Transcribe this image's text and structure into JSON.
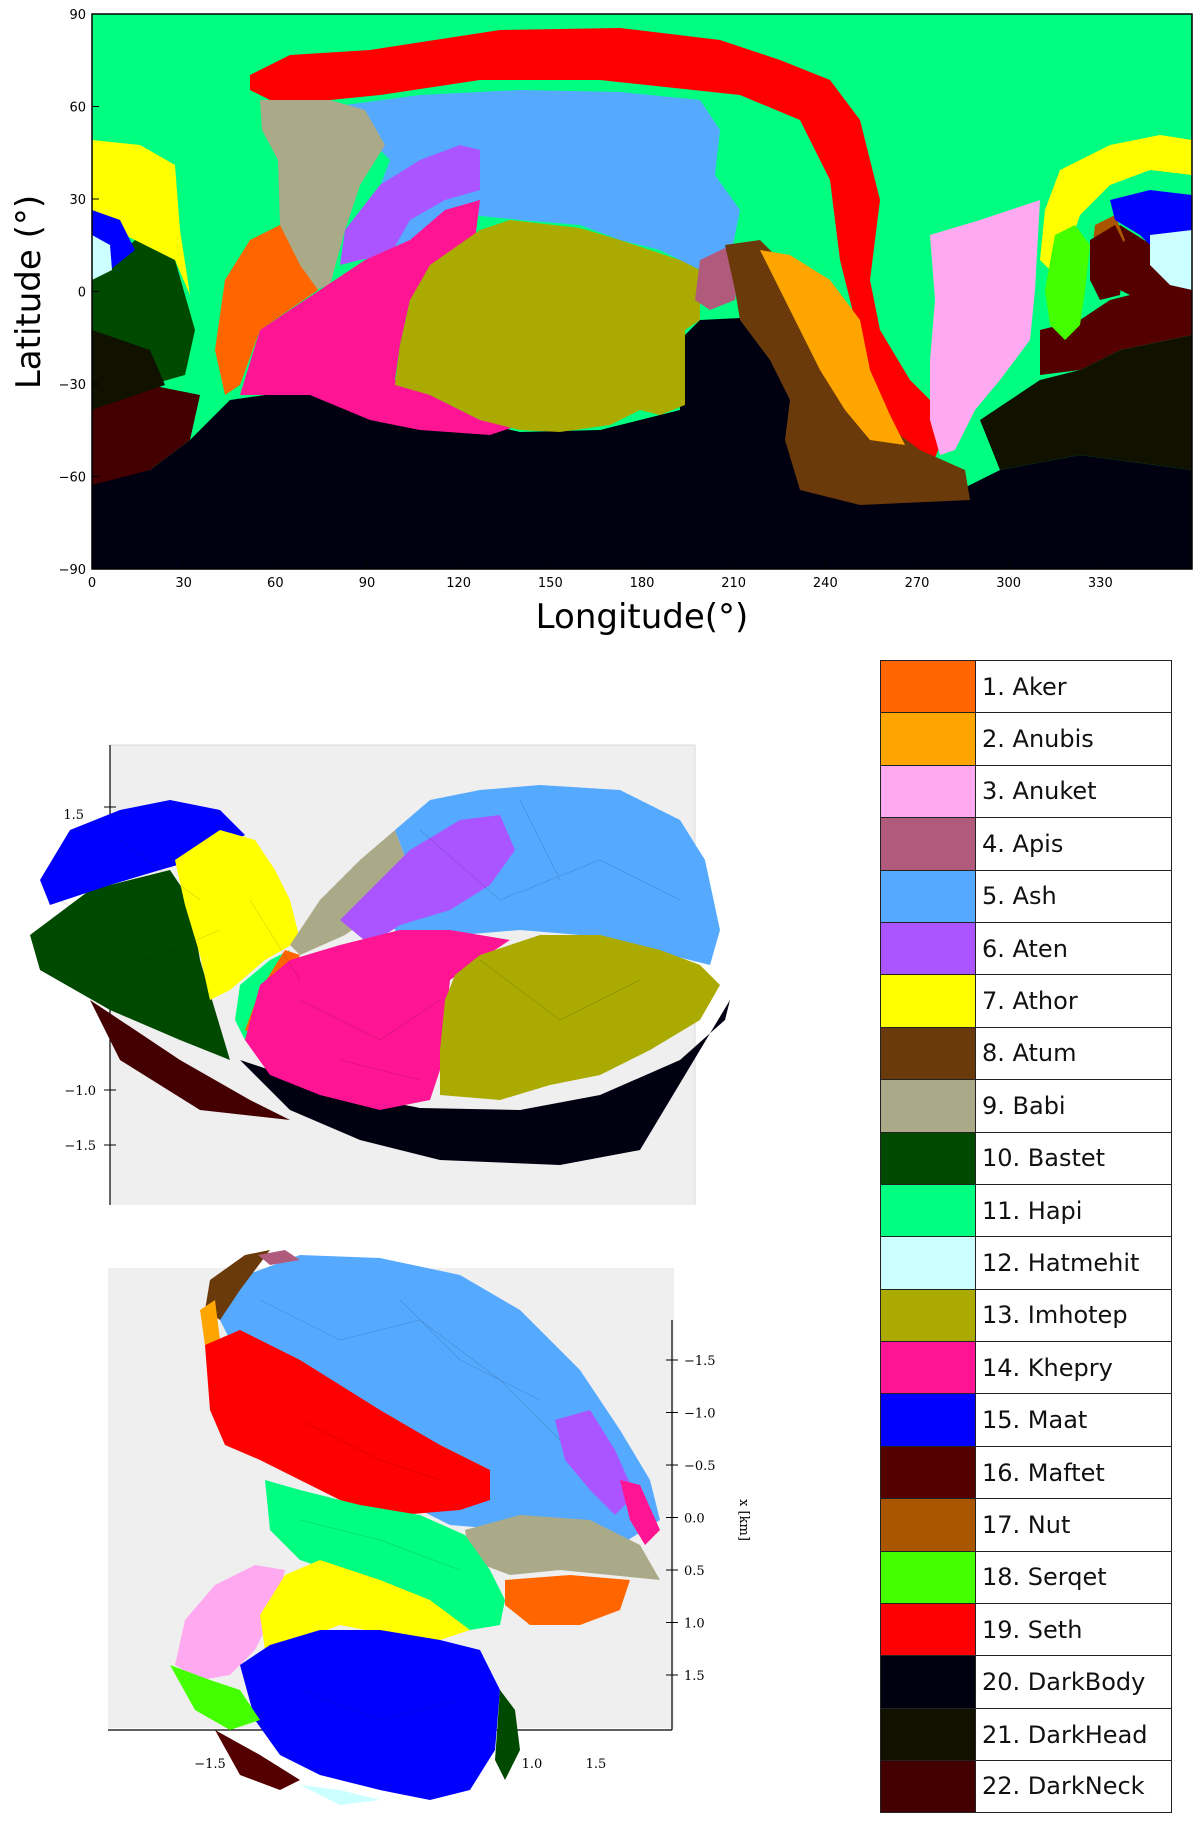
{
  "map": {
    "ylabel": "Latitude (°)",
    "xlabel": "Longitude(°)",
    "xticks": [
      "0",
      "30",
      "60",
      "90",
      "120",
      "150",
      "180",
      "210",
      "240",
      "270",
      "300",
      "330"
    ],
    "yticks": [
      "90",
      "60",
      "30",
      "0",
      "−30",
      "−60",
      "−90"
    ]
  },
  "view1": {
    "yticks": [
      "1.5",
      "−1.0",
      "−1.5"
    ]
  },
  "view2": {
    "axis_label": "x [km]",
    "xticks": [
      "−1.5",
      "−1.0",
      "−0.5",
      "0.0",
      "0.5",
      "1.0",
      "1.5"
    ],
    "bottom_ticks": [
      "−1.5",
      "1.0",
      "1.5"
    ]
  },
  "legend": [
    {
      "label": "1. Aker",
      "color": "#ff6600"
    },
    {
      "label": "2. Anubis",
      "color": "#ffa500"
    },
    {
      "label": "3. Anuket",
      "color": "#ffaaf0"
    },
    {
      "label": "4. Apis",
      "color": "#b05a7c"
    },
    {
      "label": "5. Ash",
      "color": "#55aaff"
    },
    {
      "label": "6. Aten",
      "color": "#aa55ff"
    },
    {
      "label": "7. Athor",
      "color": "#ffff00"
    },
    {
      "label": "8. Atum",
      "color": "#6b3a0a"
    },
    {
      "label": "9. Babi",
      "color": "#aaaa88"
    },
    {
      "label": "10. Bastet",
      "color": "#004a00"
    },
    {
      "label": "11. Hapi",
      "color": "#00ff80"
    },
    {
      "label": "12. Hatmehit",
      "color": "#ccffff"
    },
    {
      "label": "13. Imhotep",
      "color": "#aaaa00"
    },
    {
      "label": "14. Khepry",
      "color": "#ff1493"
    },
    {
      "label": "15. Maat",
      "color": "#0000ff"
    },
    {
      "label": "16. Maftet",
      "color": "#550000"
    },
    {
      "label": "17. Nut",
      "color": "#aa5500"
    },
    {
      "label": "18. Serqet",
      "color": "#44ff00"
    },
    {
      "label": "19. Seth",
      "color": "#ff0000"
    },
    {
      "label": "20. DarkBody",
      "color": "#000011"
    },
    {
      "label": "21. DarkHead",
      "color": "#111100"
    },
    {
      "label": "22. DarkNeck",
      "color": "#440000"
    }
  ]
}
